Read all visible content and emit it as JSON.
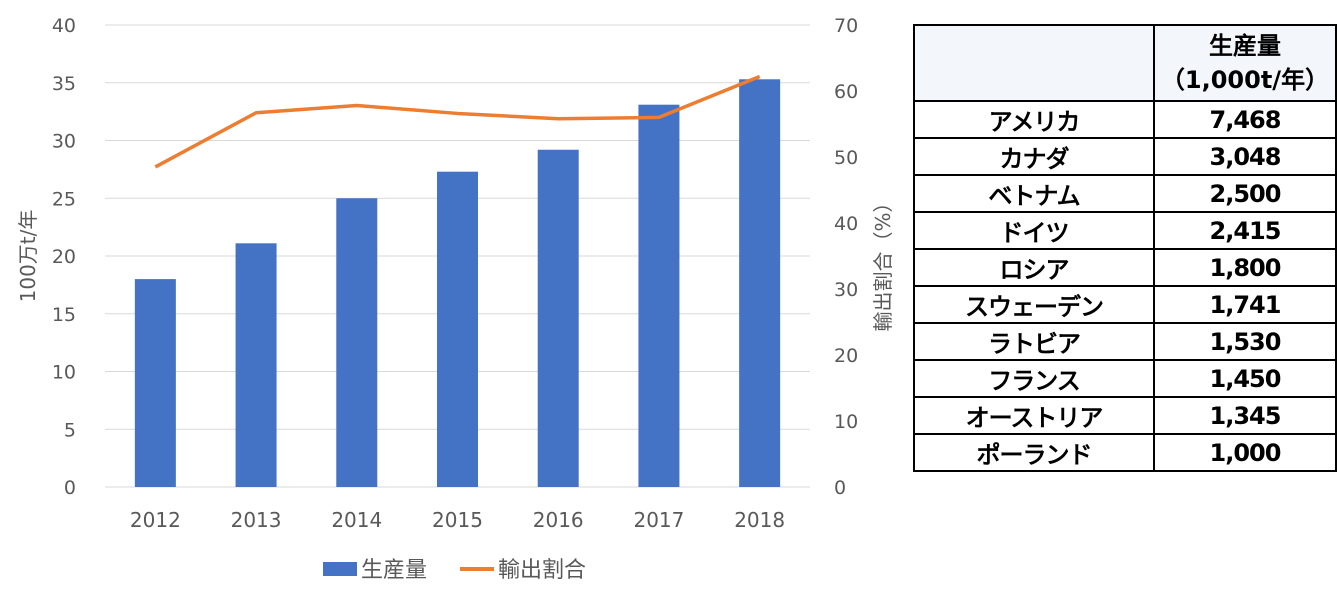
{
  "chart_data": {
    "type": "bar",
    "categories": [
      "2012",
      "2013",
      "2014",
      "2015",
      "2016",
      "2017",
      "2018"
    ],
    "series": [
      {
        "name": "生産量",
        "type": "bar",
        "axis": "left",
        "color": "#4472c4",
        "values": [
          18.0,
          21.1,
          25.0,
          27.3,
          29.2,
          33.1,
          35.3
        ]
      },
      {
        "name": "輸出割合",
        "type": "line",
        "axis": "right",
        "color": "#ed7d31",
        "values": [
          48.5,
          56.7,
          57.8,
          56.6,
          55.8,
          56.0,
          62.2
        ]
      }
    ],
    "ylabel": "100万t/年",
    "y2label": "輸出割合（%）",
    "ylim": [
      0,
      40
    ],
    "y2lim": [
      0,
      70
    ],
    "yticks": [
      "0",
      "5",
      "10",
      "15",
      "20",
      "25",
      "30",
      "35",
      "40"
    ],
    "y2ticks": [
      "0",
      "10",
      "20",
      "30",
      "40",
      "50",
      "60",
      "70"
    ],
    "grid": true,
    "legend": "bottom"
  },
  "table": {
    "header_line1": "生産量",
    "header_line2": "（1,000t/年）",
    "rows": [
      {
        "country": "アメリカ",
        "value": "7,468"
      },
      {
        "country": "カナダ",
        "value": "3,048"
      },
      {
        "country": "ベトナム",
        "value": "2,500"
      },
      {
        "country": "ドイツ",
        "value": "2,415"
      },
      {
        "country": "ロシア",
        "value": "1,800"
      },
      {
        "country": "スウェーデン",
        "value": "1,741"
      },
      {
        "country": "ラトビア",
        "value": "1,530"
      },
      {
        "country": "フランス",
        "value": "1,450"
      },
      {
        "country": "オーストリア",
        "value": "1,345"
      },
      {
        "country": "ポーランド",
        "value": "1,000"
      }
    ]
  }
}
